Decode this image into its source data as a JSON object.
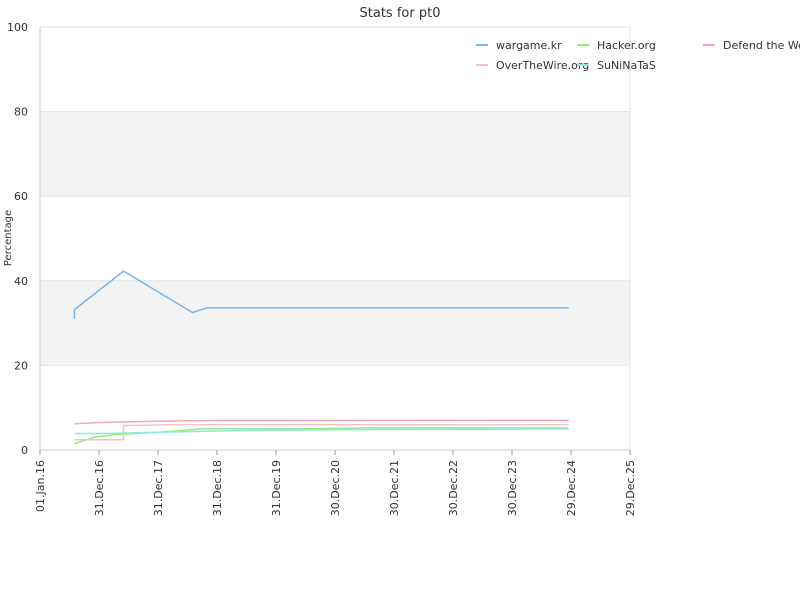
{
  "chart_data": {
    "type": "line",
    "title": "Stats for pt0",
    "xlabel": "",
    "ylabel": "Percentage",
    "ylim": [
      0,
      100
    ],
    "yticks": [
      0,
      20,
      40,
      60,
      80,
      100
    ],
    "xlim": [
      "2016-01-01",
      "2025-12-29"
    ],
    "xticks": [
      {
        "date": "2016-01-01",
        "label": "01.Jan.16"
      },
      {
        "date": "2016-12-31",
        "label": "31.Dec.16"
      },
      {
        "date": "2017-12-31",
        "label": "31.Dec.17"
      },
      {
        "date": "2018-12-31",
        "label": "31.Dec.18"
      },
      {
        "date": "2019-12-31",
        "label": "31.Dec.19"
      },
      {
        "date": "2020-12-30",
        "label": "30.Dec.20"
      },
      {
        "date": "2021-12-30",
        "label": "30.Dec.21"
      },
      {
        "date": "2022-12-30",
        "label": "30.Dec.22"
      },
      {
        "date": "2023-12-30",
        "label": "30.Dec.23"
      },
      {
        "date": "2024-12-29",
        "label": "29.Dec.24"
      },
      {
        "date": "2025-12-29",
        "label": "29.Dec.25"
      }
    ],
    "grid": true,
    "banded_background": true,
    "legend_position": "top-right",
    "series": [
      {
        "name": "wargame.kr",
        "color": "#7cb5ec",
        "points": [
          [
            "2016-08-01",
            31.0
          ],
          [
            "2016-08-01",
            33.2
          ],
          [
            "2017-06-01",
            42.3
          ],
          [
            "2018-08-01",
            32.5
          ],
          [
            "2018-11-01",
            33.6
          ],
          [
            "2024-12-15",
            33.6
          ]
        ]
      },
      {
        "name": "Hacker.org",
        "color": "#90ed7d",
        "points": [
          [
            "2016-08-01",
            1.5
          ],
          [
            "2016-12-01",
            3.0
          ],
          [
            "2017-04-01",
            3.6
          ],
          [
            "2018-01-01",
            4.2
          ],
          [
            "2018-10-01",
            5.0
          ],
          [
            "2020-06-01",
            5.0
          ],
          [
            "2021-06-01",
            5.2
          ],
          [
            "2024-12-15",
            5.2
          ]
        ]
      },
      {
        "name": "Defend the Web",
        "color": "#f7a35c",
        "stroke": "#f4a6b8",
        "points": [
          [
            "2016-08-01",
            6.2
          ],
          [
            "2017-01-01",
            6.5
          ],
          [
            "2017-12-01",
            6.8
          ],
          [
            "2019-01-01",
            7.0
          ],
          [
            "2024-12-15",
            7.0
          ]
        ]
      },
      {
        "name": "OverTheWire.org",
        "color": "#f4c2c2",
        "points": [
          [
            "2016-08-01",
            2.4
          ],
          [
            "2017-06-01",
            2.4
          ],
          [
            "2017-06-01",
            5.8
          ],
          [
            "2018-06-01",
            6.0
          ],
          [
            "2024-12-15",
            6.0
          ]
        ]
      },
      {
        "name": "SuNiNaTaS",
        "color": "#91e8e1",
        "points": [
          [
            "2016-08-01",
            3.9
          ],
          [
            "2017-01-01",
            3.9
          ],
          [
            "2017-06-01",
            4.0
          ],
          [
            "2018-06-01",
            4.3
          ],
          [
            "2019-06-01",
            4.6
          ],
          [
            "2021-01-01",
            4.8
          ],
          [
            "2024-12-15",
            5.0
          ]
        ]
      }
    ]
  }
}
